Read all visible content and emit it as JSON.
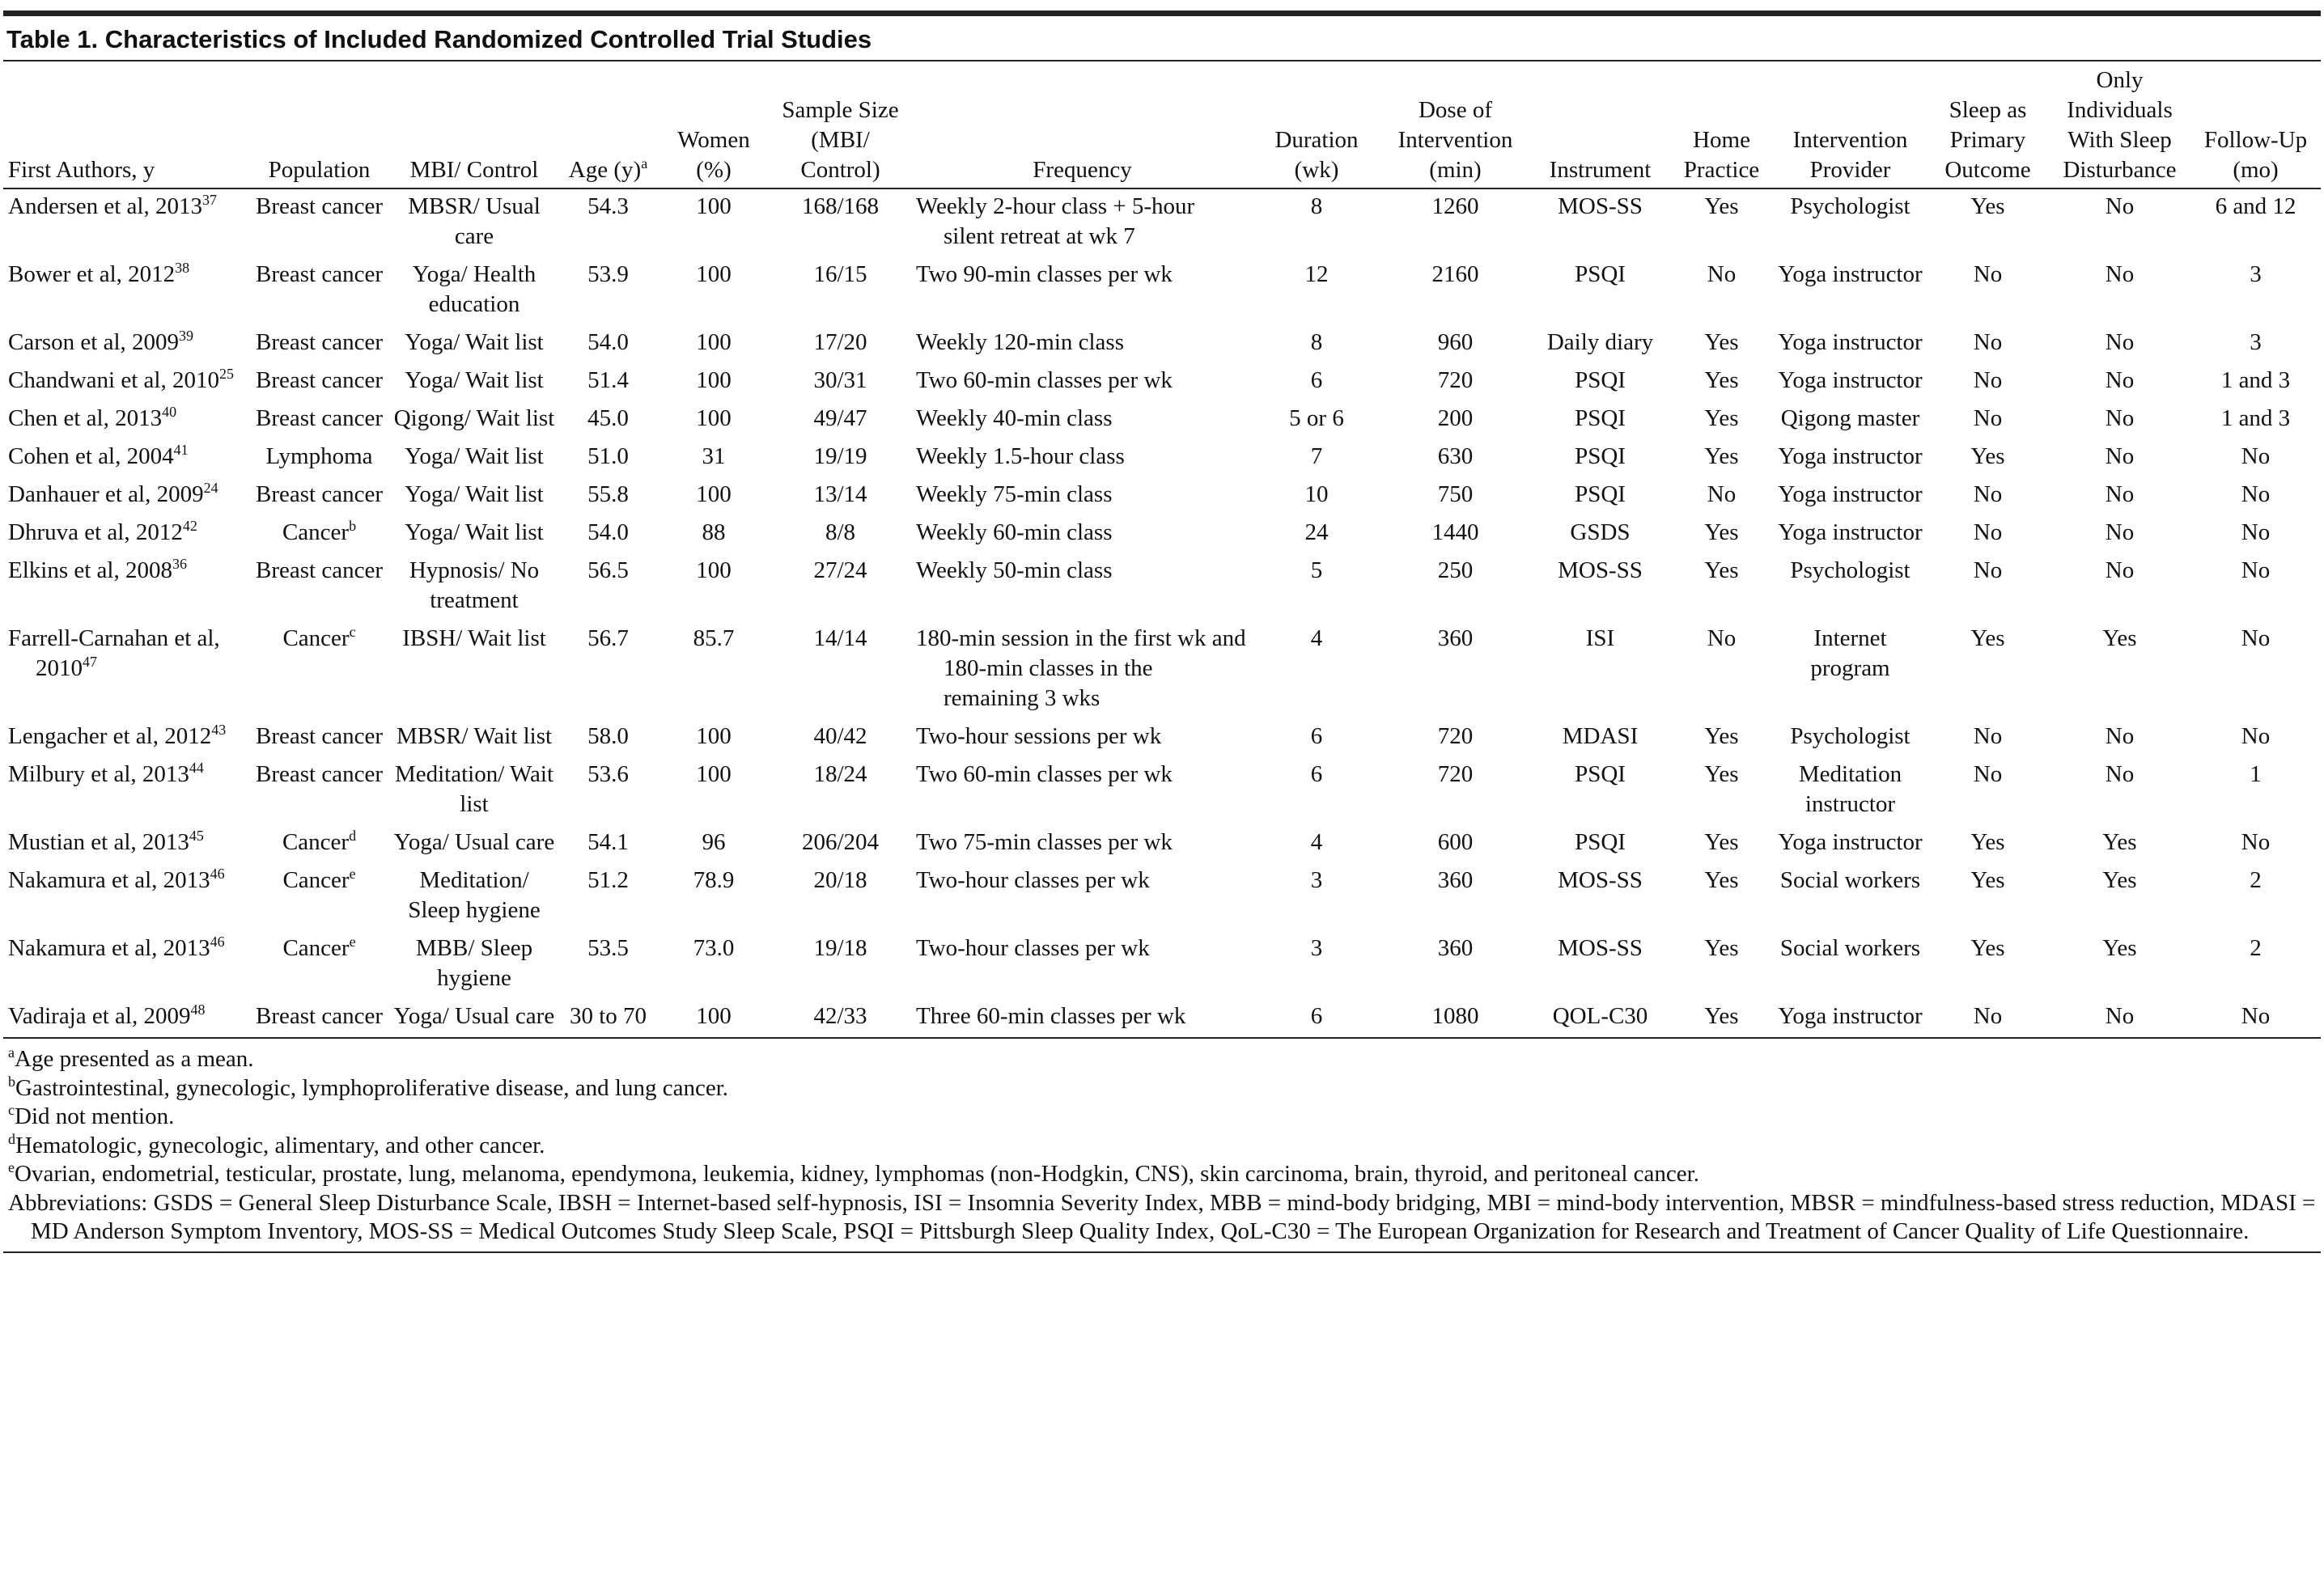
{
  "title": "Table 1. Characteristics of Included Randomized Controlled Trial Studies",
  "table": {
    "columns": [
      "First Authors, y",
      "Population",
      "MBI/ Control",
      {
        "text": "Age (y)",
        "sup": "a"
      },
      "Women (%)",
      "Sample Size (MBI/ Control)",
      "Frequency",
      "Duration (wk)",
      "Dose of Intervention (min)",
      "Instrument",
      "Home Practice",
      "Intervention Provider",
      "Sleep as Primary Outcome",
      "Only Individuals With Sleep Disturbance",
      "Follow-Up (mo)"
    ],
    "rows": [
      [
        {
          "text": "Andersen et al, 2013",
          "sup": "37"
        },
        "Breast cancer",
        "MBSR/ Usual care",
        "54.3",
        "100",
        "168/168",
        "Weekly 2-hour class + 5-hour silent retreat at wk 7",
        "8",
        "1260",
        "MOS-SS",
        "Yes",
        "Psychologist",
        "Yes",
        "No",
        "6 and 12"
      ],
      [
        {
          "text": "Bower et al, 2012",
          "sup": "38"
        },
        "Breast cancer",
        "Yoga/ Health education",
        "53.9",
        "100",
        "16/15",
        "Two 90-min classes per wk",
        "12",
        "2160",
        "PSQI",
        "No",
        "Yoga instructor",
        "No",
        "No",
        "3"
      ],
      [
        {
          "text": "Carson et al, 2009",
          "sup": "39"
        },
        "Breast cancer",
        "Yoga/ Wait list",
        "54.0",
        "100",
        "17/20",
        "Weekly 120-min class",
        "8",
        "960",
        "Daily diary",
        "Yes",
        "Yoga instructor",
        "No",
        "No",
        "3"
      ],
      [
        {
          "text": "Chandwani et al, 2010",
          "sup": "25"
        },
        "Breast cancer",
        "Yoga/ Wait list",
        "51.4",
        "100",
        "30/31",
        "Two 60-min classes per wk",
        "6",
        "720",
        "PSQI",
        "Yes",
        "Yoga instructor",
        "No",
        "No",
        "1 and 3"
      ],
      [
        {
          "text": "Chen et al, 2013",
          "sup": "40"
        },
        "Breast cancer",
        "Qigong/ Wait list",
        "45.0",
        "100",
        "49/47",
        "Weekly 40-min class",
        "5 or 6",
        "200",
        "PSQI",
        "Yes",
        "Qigong master",
        "No",
        "No",
        "1 and 3"
      ],
      [
        {
          "text": "Cohen et al, 2004",
          "sup": "41"
        },
        "Lymphoma",
        "Yoga/ Wait list",
        "51.0",
        "31",
        "19/19",
        "Weekly 1.5-hour class",
        "7",
        "630",
        "PSQI",
        "Yes",
        "Yoga instructor",
        "Yes",
        "No",
        "No"
      ],
      [
        {
          "text": "Danhauer et al, 2009",
          "sup": "24"
        },
        "Breast cancer",
        "Yoga/ Wait list",
        "55.8",
        "100",
        "13/14",
        "Weekly 75-min class",
        "10",
        "750",
        "PSQI",
        "No",
        "Yoga instructor",
        "No",
        "No",
        "No"
      ],
      [
        {
          "text": "Dhruva et al, 2012",
          "sup": "42"
        },
        {
          "text": "Cancer",
          "sup": "b"
        },
        "Yoga/ Wait list",
        "54.0",
        "88",
        "8/8",
        "Weekly 60-min class",
        "24",
        "1440",
        "GSDS",
        "Yes",
        "Yoga instructor",
        "No",
        "No",
        "No"
      ],
      [
        {
          "text": "Elkins et al, 2008",
          "sup": "36"
        },
        "Breast cancer",
        "Hypnosis/ No treatment",
        "56.5",
        "100",
        "27/24",
        "Weekly 50-min class",
        "5",
        "250",
        "MOS-SS",
        "Yes",
        "Psychologist",
        "No",
        "No",
        "No"
      ],
      [
        {
          "text": "Farrell-Carnahan et al, 2010",
          "sup": "47"
        },
        {
          "text": "Cancer",
          "sup": "c"
        },
        "IBSH/ Wait list",
        "56.7",
        "85.7",
        "14/14",
        "180-min session in the first wk and 180-min classes in the remaining 3 wks",
        "4",
        "360",
        "ISI",
        "No",
        "Internet program",
        "Yes",
        "Yes",
        "No"
      ],
      [
        {
          "text": "Lengacher et al, 2012",
          "sup": "43"
        },
        "Breast cancer",
        "MBSR/ Wait list",
        "58.0",
        "100",
        "40/42",
        "Two-hour sessions per wk",
        "6",
        "720",
        "MDASI",
        "Yes",
        "Psychologist",
        "No",
        "No",
        "No"
      ],
      [
        {
          "text": "Milbury et al, 2013",
          "sup": "44"
        },
        "Breast cancer",
        "Meditation/ Wait list",
        "53.6",
        "100",
        "18/24",
        "Two 60-min classes per wk",
        "6",
        "720",
        "PSQI",
        "Yes",
        "Meditation instructor",
        "No",
        "No",
        "1"
      ],
      [
        {
          "text": "Mustian et al, 2013",
          "sup": "45"
        },
        {
          "text": "Cancer",
          "sup": "d"
        },
        "Yoga/ Usual care",
        "54.1",
        "96",
        "206/204",
        "Two 75-min classes per wk",
        "4",
        "600",
        "PSQI",
        "Yes",
        "Yoga instructor",
        "Yes",
        "Yes",
        "No"
      ],
      [
        {
          "text": "Nakamura et al, 2013",
          "sup": "46"
        },
        {
          "text": "Cancer",
          "sup": "e"
        },
        "Meditation/ Sleep hygiene",
        "51.2",
        "78.9",
        "20/18",
        "Two-hour classes per wk",
        "3",
        "360",
        "MOS-SS",
        "Yes",
        "Social workers",
        "Yes",
        "Yes",
        "2"
      ],
      [
        {
          "text": "Nakamura et al, 2013",
          "sup": "46"
        },
        {
          "text": "Cancer",
          "sup": "e"
        },
        "MBB/ Sleep hygiene",
        "53.5",
        "73.0",
        "19/18",
        "Two-hour classes per wk",
        "3",
        "360",
        "MOS-SS",
        "Yes",
        "Social workers",
        "Yes",
        "Yes",
        "2"
      ],
      [
        {
          "text": "Vadiraja et al, 2009",
          "sup": "48"
        },
        "Breast cancer",
        "Yoga/ Usual care",
        "30 to 70",
        "100",
        "42/33",
        "Three 60-min classes per wk",
        "6",
        "1080",
        "QOL-C30",
        "Yes",
        "Yoga instructor",
        "No",
        "No",
        "No"
      ]
    ]
  },
  "footnotes": [
    {
      "mark": "a",
      "text": "Age presented as a mean."
    },
    {
      "mark": "b",
      "text": "Gastrointestinal, gynecologic, lymphoproliferative disease, and lung cancer."
    },
    {
      "mark": "c",
      "text": "Did not mention."
    },
    {
      "mark": "d",
      "text": "Hematologic, gynecologic, alimentary, and other cancer."
    },
    {
      "mark": "e",
      "text": "Ovarian, endometrial, testicular, prostate, lung, melanoma, ependymona, leukemia, kidney, lymphomas (non-Hodgkin, CNS), skin carcinoma, brain, thyroid, and peritoneal cancer."
    }
  ],
  "abbreviations": "Abbreviations: GSDS = General Sleep Disturbance Scale, IBSH = Internet-based self-hypnosis, ISI = Insomnia Severity Index, MBB = mind-body bridging, MBI = mind-body intervention, MBSR = mindfulness-based stress reduction, MDASI = MD Anderson Symptom Inventory, MOS-SS = Medical Outcomes Study Sleep Scale, PSQI = Pittsburgh Sleep Quality Index, QoL-C30 = The European Organization for Research and Treatment of Cancer Quality of Life Questionnaire."
}
